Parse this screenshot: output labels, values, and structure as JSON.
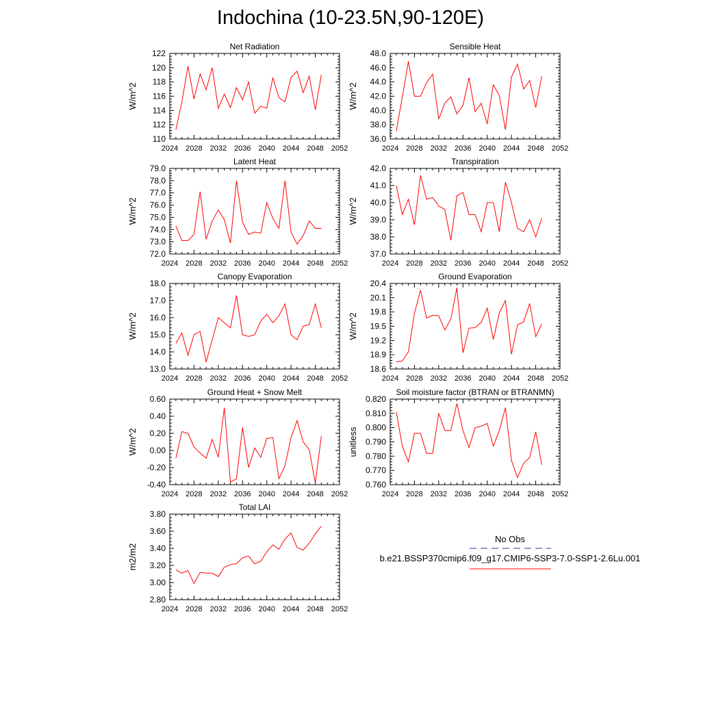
{
  "page": {
    "title": "Indochina (10-23.5N,90-120E)"
  },
  "legend": {
    "entries": [
      {
        "label": "No Obs",
        "color": "#3030a0",
        "dash": true
      },
      {
        "label": "b.e21.BSSP370cmip6.f09_g17.CMIP6-SSP3-7.0-SSP1-2.6Lu.001",
        "color": "#ff0000",
        "dash": false
      }
    ]
  },
  "chart_data": [
    {
      "type": "line",
      "title": "Net Radiation",
      "ylabel": "W/m^2",
      "xlim": [
        2024,
        2052
      ],
      "ylim": [
        110,
        122
      ],
      "grid": false,
      "xticks": [
        2024,
        2028,
        2032,
        2036,
        2040,
        2044,
        2048,
        2052
      ],
      "xtick_labels": [
        "2024",
        "2028",
        "2032",
        "2036",
        "2040",
        "2044",
        "2048",
        "2052"
      ],
      "yticks": [
        110,
        112,
        114,
        116,
        118,
        120,
        122
      ],
      "ytick_labels": [
        "110",
        "112",
        "114",
        "116",
        "118",
        "120",
        "122"
      ],
      "series": [
        {
          "color": "#ff0000",
          "x": [
            2025,
            2026,
            2027,
            2028,
            2029,
            2030,
            2031,
            2032,
            2033,
            2034,
            2035,
            2036,
            2037,
            2038,
            2039,
            2040,
            2041,
            2042,
            2043,
            2044,
            2045,
            2046,
            2047,
            2048,
            2049
          ],
          "y": [
            111.3,
            115.2,
            120.2,
            115.6,
            119.1,
            116.9,
            120.0,
            114.3,
            116.3,
            114.4,
            117.2,
            115.5,
            118.0,
            113.6,
            114.6,
            114.3,
            118.6,
            115.8,
            115.2,
            118.6,
            119.5,
            116.5,
            118.8,
            114.1,
            119.0
          ]
        }
      ]
    },
    {
      "type": "line",
      "title": "Sensible Heat",
      "ylabel": "W/m^2",
      "xlim": [
        2024,
        2052
      ],
      "ylim": [
        36,
        48
      ],
      "grid": false,
      "xticks": [
        2024,
        2028,
        2032,
        2036,
        2040,
        2044,
        2048,
        2052
      ],
      "xtick_labels": [
        "2024",
        "2028",
        "2032",
        "2036",
        "2040",
        "2044",
        "2048",
        "2052"
      ],
      "yticks": [
        36,
        38,
        40,
        42,
        44,
        46,
        48
      ],
      "ytick_labels": [
        "36.0",
        "38.0",
        "40.0",
        "42.0",
        "44.0",
        "46.0",
        "48.0"
      ],
      "series": [
        {
          "color": "#ff0000",
          "x": [
            2025,
            2026,
            2027,
            2028,
            2029,
            2030,
            2031,
            2032,
            2033,
            2034,
            2035,
            2036,
            2037,
            2038,
            2039,
            2040,
            2041,
            2042,
            2043,
            2044,
            2045,
            2046,
            2047,
            2048,
            2049
          ],
          "y": [
            37.1,
            41.9,
            46.9,
            42.0,
            42.0,
            43.9,
            45.1,
            38.8,
            41.0,
            41.9,
            39.5,
            40.7,
            44.6,
            39.8,
            41.0,
            38.1,
            43.6,
            42.1,
            37.3,
            44.7,
            46.5,
            43.0,
            44.2,
            40.4,
            44.8
          ]
        }
      ]
    },
    {
      "type": "line",
      "title": "Latent Heat",
      "ylabel": "W/m^2",
      "xlim": [
        2024,
        2052
      ],
      "ylim": [
        72,
        79
      ],
      "grid": false,
      "xticks": [
        2024,
        2028,
        2032,
        2036,
        2040,
        2044,
        2048,
        2052
      ],
      "xtick_labels": [
        "2024",
        "2028",
        "2032",
        "2036",
        "2040",
        "2044",
        "2048",
        "2052"
      ],
      "yticks": [
        72,
        73,
        74,
        75,
        76,
        77,
        78,
        79
      ],
      "ytick_labels": [
        "72.0",
        "73.0",
        "74.0",
        "75.0",
        "76.0",
        "77.0",
        "78.0",
        "79.0"
      ],
      "series": [
        {
          "color": "#ff0000",
          "x": [
            2025,
            2026,
            2027,
            2028,
            2029,
            2030,
            2031,
            2032,
            2033,
            2034,
            2035,
            2036,
            2037,
            2038,
            2039,
            2040,
            2041,
            2042,
            2043,
            2044,
            2045,
            2046,
            2047,
            2048,
            2049
          ],
          "y": [
            74.3,
            73.1,
            73.1,
            73.6,
            77.1,
            73.2,
            74.7,
            75.6,
            74.8,
            72.9,
            78.0,
            74.6,
            73.6,
            73.8,
            73.7,
            76.2,
            74.9,
            74.1,
            78.0,
            73.8,
            72.8,
            73.5,
            74.7,
            74.1,
            74.1
          ]
        }
      ]
    },
    {
      "type": "line",
      "title": "Transpiration",
      "ylabel": "W/m^2",
      "xlim": [
        2024,
        2052
      ],
      "ylim": [
        37,
        42
      ],
      "grid": false,
      "xticks": [
        2024,
        2028,
        2032,
        2036,
        2040,
        2044,
        2048,
        2052
      ],
      "xtick_labels": [
        "2024",
        "2028",
        "2032",
        "2036",
        "2040",
        "2044",
        "2048",
        "2052"
      ],
      "yticks": [
        37,
        38,
        39,
        40,
        41,
        42
      ],
      "ytick_labels": [
        "37.0",
        "38.0",
        "39.0",
        "40.0",
        "41.0",
        "42.0"
      ],
      "series": [
        {
          "color": "#ff0000",
          "x": [
            2025,
            2026,
            2027,
            2028,
            2029,
            2030,
            2031,
            2032,
            2033,
            2034,
            2035,
            2036,
            2037,
            2038,
            2039,
            2040,
            2041,
            2042,
            2043,
            2044,
            2045,
            2046,
            2047,
            2048,
            2049
          ],
          "y": [
            41.0,
            39.3,
            40.2,
            38.7,
            41.6,
            40.2,
            40.3,
            39.8,
            39.6,
            37.8,
            40.4,
            40.6,
            39.3,
            39.3,
            38.3,
            40.0,
            40.0,
            38.3,
            41.2,
            40.0,
            38.5,
            38.3,
            39.0,
            38.0,
            39.1
          ]
        }
      ]
    },
    {
      "type": "line",
      "title": "Canopy Evaporation",
      "ylabel": "W/m^2",
      "xlim": [
        2024,
        2052
      ],
      "ylim": [
        13,
        18
      ],
      "grid": false,
      "xticks": [
        2024,
        2028,
        2032,
        2036,
        2040,
        2044,
        2048,
        2052
      ],
      "xtick_labels": [
        "2024",
        "2028",
        "2032",
        "2036",
        "2040",
        "2044",
        "2048",
        "2052"
      ],
      "yticks": [
        13,
        14,
        15,
        16,
        17,
        18
      ],
      "ytick_labels": [
        "13.0",
        "14.0",
        "15.0",
        "16.0",
        "17.0",
        "18.0"
      ],
      "series": [
        {
          "color": "#ff0000",
          "x": [
            2025,
            2026,
            2027,
            2028,
            2029,
            2030,
            2031,
            2032,
            2033,
            2034,
            2035,
            2036,
            2037,
            2038,
            2039,
            2040,
            2041,
            2042,
            2043,
            2044,
            2045,
            2046,
            2047,
            2048,
            2049
          ],
          "y": [
            14.5,
            15.1,
            13.8,
            15.0,
            15.2,
            13.4,
            14.7,
            16.0,
            15.7,
            15.4,
            17.3,
            15.0,
            14.9,
            15.0,
            15.8,
            16.2,
            15.7,
            16.1,
            16.8,
            15.0,
            14.7,
            15.5,
            15.6,
            16.8,
            15.4
          ]
        }
      ]
    },
    {
      "type": "line",
      "title": "Ground Evaporation",
      "ylabel": "W/m^2",
      "xlim": [
        2024,
        2052
      ],
      "ylim": [
        18.6,
        20.4
      ],
      "grid": false,
      "xticks": [
        2024,
        2028,
        2032,
        2036,
        2040,
        2044,
        2048,
        2052
      ],
      "xtick_labels": [
        "2024",
        "2028",
        "2032",
        "2036",
        "2040",
        "2044",
        "2048",
        "2052"
      ],
      "yticks": [
        18.6,
        18.9,
        19.2,
        19.5,
        19.8,
        20.1,
        20.4
      ],
      "ytick_labels": [
        "18.6",
        "18.9",
        "19.2",
        "19.5",
        "19.8",
        "20.1",
        "20.4"
      ],
      "series": [
        {
          "color": "#ff0000",
          "x": [
            2025,
            2026,
            2027,
            2028,
            2029,
            2030,
            2031,
            2032,
            2033,
            2034,
            2035,
            2036,
            2037,
            2038,
            2039,
            2040,
            2041,
            2042,
            2043,
            2044,
            2045,
            2046,
            2047,
            2048,
            2049
          ],
          "y": [
            18.75,
            18.77,
            18.96,
            19.77,
            20.26,
            19.67,
            19.73,
            19.72,
            19.42,
            19.65,
            20.31,
            18.94,
            19.46,
            19.47,
            19.58,
            19.88,
            19.22,
            19.78,
            20.04,
            18.91,
            19.53,
            19.59,
            19.98,
            19.28,
            19.55
          ]
        }
      ]
    },
    {
      "type": "line",
      "title": "Ground Heat + Snow Melt",
      "ylabel": "W/m^2",
      "xlim": [
        2024,
        2052
      ],
      "ylim": [
        -0.4,
        0.6
      ],
      "grid": false,
      "xticks": [
        2024,
        2028,
        2032,
        2036,
        2040,
        2044,
        2048,
        2052
      ],
      "xtick_labels": [
        "2024",
        "2028",
        "2032",
        "2036",
        "2040",
        "2044",
        "2048",
        "2052"
      ],
      "yticks": [
        -0.4,
        -0.2,
        0.0,
        0.2,
        0.4,
        0.6
      ],
      "ytick_labels": [
        "-0.40",
        "-0.20",
        "0.00",
        "0.20",
        "0.40",
        "0.60"
      ],
      "series": [
        {
          "color": "#ff0000",
          "x": [
            2025,
            2026,
            2027,
            2028,
            2029,
            2030,
            2031,
            2032,
            2033,
            2034,
            2035,
            2036,
            2037,
            2038,
            2039,
            2040,
            2041,
            2042,
            2043,
            2044,
            2045,
            2046,
            2047,
            2048,
            2049
          ],
          "y": [
            -0.09,
            0.22,
            0.2,
            0.04,
            -0.03,
            -0.09,
            0.13,
            -0.08,
            0.5,
            -0.37,
            -0.33,
            0.27,
            -0.2,
            0.03,
            -0.08,
            0.14,
            0.15,
            -0.33,
            -0.18,
            0.15,
            0.35,
            0.1,
            0.01,
            -0.38,
            0.17
          ]
        }
      ]
    },
    {
      "type": "line",
      "title": "Soil moisture factor (BTRAN or BTRANMN)",
      "ylabel": "unitless",
      "xlim": [
        2024,
        2052
      ],
      "ylim": [
        0.76,
        0.82
      ],
      "grid": false,
      "xticks": [
        2024,
        2028,
        2032,
        2036,
        2040,
        2044,
        2048,
        2052
      ],
      "xtick_labels": [
        "2024",
        "2028",
        "2032",
        "2036",
        "2040",
        "2044",
        "2048",
        "2052"
      ],
      "yticks": [
        0.76,
        0.77,
        0.78,
        0.79,
        0.8,
        0.81,
        0.82
      ],
      "ytick_labels": [
        "0.760",
        "0.770",
        "0.780",
        "0.790",
        "0.800",
        "0.810",
        "0.820"
      ],
      "series": [
        {
          "color": "#ff0000",
          "x": [
            2025,
            2026,
            2027,
            2028,
            2029,
            2030,
            2031,
            2032,
            2033,
            2034,
            2035,
            2036,
            2037,
            2038,
            2039,
            2040,
            2041,
            2042,
            2043,
            2044,
            2045,
            2046,
            2047,
            2048,
            2049
          ],
          "y": [
            0.811,
            0.787,
            0.776,
            0.796,
            0.796,
            0.782,
            0.782,
            0.81,
            0.798,
            0.798,
            0.817,
            0.798,
            0.786,
            0.8,
            0.801,
            0.803,
            0.787,
            0.798,
            0.814,
            0.777,
            0.765,
            0.775,
            0.779,
            0.797,
            0.774
          ]
        }
      ]
    },
    {
      "type": "line",
      "title": "Total LAI",
      "ylabel": "m2/m2",
      "xlim": [
        2024,
        2052
      ],
      "ylim": [
        2.8,
        3.8
      ],
      "grid": false,
      "xticks": [
        2024,
        2028,
        2032,
        2036,
        2040,
        2044,
        2048,
        2052
      ],
      "xtick_labels": [
        "2024",
        "2028",
        "2032",
        "2036",
        "2040",
        "2044",
        "2048",
        "2052"
      ],
      "yticks": [
        2.8,
        3.0,
        3.2,
        3.4,
        3.6,
        3.8
      ],
      "ytick_labels": [
        "2.80",
        "3.00",
        "3.20",
        "3.40",
        "3.60",
        "3.80"
      ],
      "series": [
        {
          "color": "#ff0000",
          "x": [
            2025,
            2026,
            2027,
            2028,
            2029,
            2030,
            2031,
            2032,
            2033,
            2034,
            2035,
            2036,
            2037,
            2038,
            2039,
            2040,
            2041,
            2042,
            2043,
            2044,
            2045,
            2046,
            2047,
            2048,
            2049
          ],
          "y": [
            3.15,
            3.11,
            3.14,
            2.99,
            3.12,
            3.11,
            3.11,
            3.07,
            3.18,
            3.21,
            3.22,
            3.29,
            3.31,
            3.22,
            3.25,
            3.36,
            3.44,
            3.39,
            3.51,
            3.58,
            3.41,
            3.38,
            3.46,
            3.57,
            3.66
          ]
        }
      ]
    }
  ]
}
